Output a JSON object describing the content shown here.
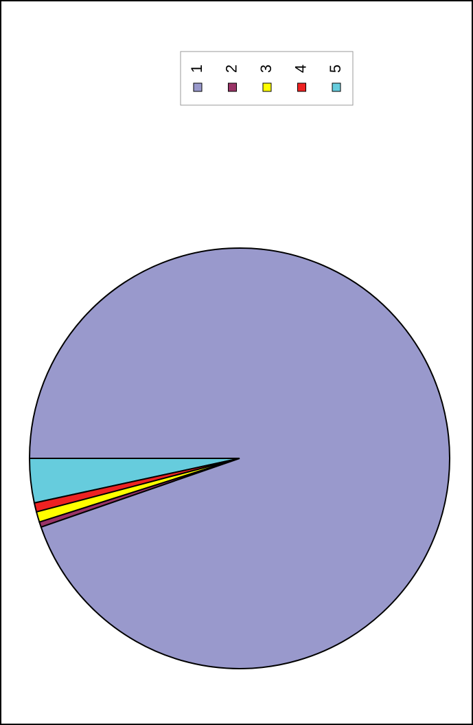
{
  "chart_data": {
    "type": "pie",
    "categories": [
      "1",
      "2",
      "3",
      "4",
      "5"
    ],
    "values": [
      94.7,
      0.4,
      0.8,
      0.7,
      3.4
    ],
    "colors": [
      "#9999cc",
      "#993366",
      "#ffff00",
      "#ee2222",
      "#66ccdd"
    ],
    "legend": "top"
  }
}
